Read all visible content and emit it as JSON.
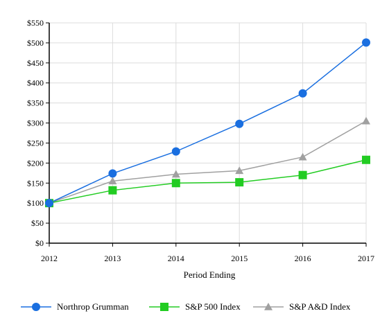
{
  "chart_data": {
    "type": "line",
    "title": "",
    "xlabel": "Period Ending",
    "ylabel": "",
    "categories": [
      "2012",
      "2013",
      "2014",
      "2015",
      "2016",
      "2017"
    ],
    "y_ticks": [
      "$0",
      "$50",
      "$100",
      "$150",
      "$200",
      "$250",
      "$300",
      "$350",
      "$400",
      "$450",
      "$500",
      "$550"
    ],
    "ylim": [
      0,
      550
    ],
    "y_step": 50,
    "grid": true,
    "legend_position": "bottom",
    "series": [
      {
        "name": "Northrop Grumman",
        "values": [
          100,
          174,
          229,
          298,
          374,
          501
        ],
        "color": "#1a6fe0",
        "marker": "circle"
      },
      {
        "name": "S&P 500 Index",
        "values": [
          100,
          132,
          150,
          152,
          170,
          208
        ],
        "color": "#22cc22",
        "marker": "square"
      },
      {
        "name": "S&P A&D Index",
        "values": [
          100,
          155,
          172,
          181,
          215,
          305
        ],
        "color": "#a0a0a0",
        "marker": "triangle"
      }
    ]
  }
}
